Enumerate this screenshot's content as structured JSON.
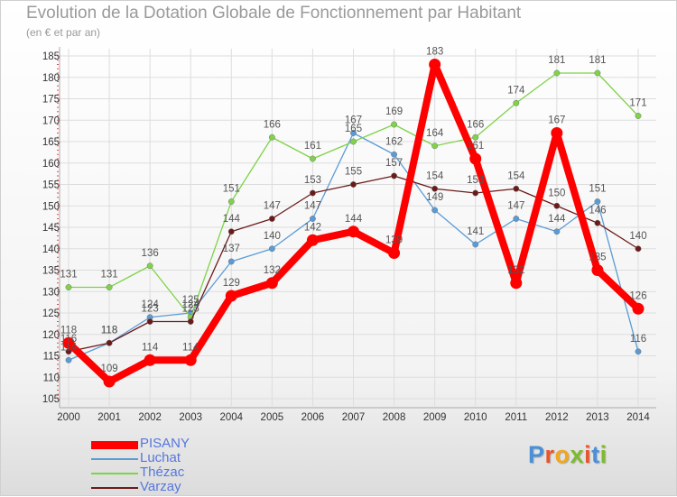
{
  "title": "Evolution de la Dotation Globale de Fonctionnement par Habitant",
  "subtitle": "(en € et par an)",
  "logo": {
    "text": "Proxiti",
    "colors": [
      "#4a90d9",
      "#e8552a",
      "#f2a81d",
      "#7cbb2c",
      "#e8552a",
      "#4a90d9",
      "#7cbb2c"
    ]
  },
  "chart_data": {
    "type": "line",
    "x": [
      "2000",
      "2001",
      "2002",
      "2003",
      "2004",
      "2005",
      "2006",
      "2007",
      "2008",
      "2009",
      "2010",
      "2011",
      "2012",
      "2013",
      "2014"
    ],
    "ylim": [
      105,
      185
    ],
    "yticks": [
      105,
      110,
      115,
      120,
      125,
      130,
      135,
      140,
      145,
      150,
      155,
      160,
      165,
      170,
      175,
      180,
      185
    ],
    "grid": true,
    "series": [
      {
        "name": "Luchat",
        "color": "#5b9bd5",
        "values": [
          114,
          118,
          124,
          125,
          137,
          140,
          147,
          167,
          162,
          149,
          141,
          147,
          144,
          151,
          116
        ]
      },
      {
        "name": "Thézac",
        "color": "#7ed348",
        "values": [
          131,
          131,
          136,
          124,
          151,
          166,
          161,
          165,
          169,
          164,
          166,
          174,
          181,
          181,
          171
        ]
      },
      {
        "name": "Varzay",
        "color": "#6b1a1a",
        "values": [
          116,
          118,
          123,
          123,
          144,
          147,
          153,
          155,
          157,
          154,
          153,
          154,
          150,
          146,
          140
        ]
      },
      {
        "name": "PISANY",
        "color": "#ff0000",
        "values": [
          118,
          109,
          114,
          114,
          129,
          132,
          142,
          144,
          139,
          183,
          161,
          132,
          167,
          135,
          126
        ]
      }
    ],
    "legend_order": [
      "PISANY",
      "Luchat",
      "Thézac",
      "Varzay"
    ]
  }
}
